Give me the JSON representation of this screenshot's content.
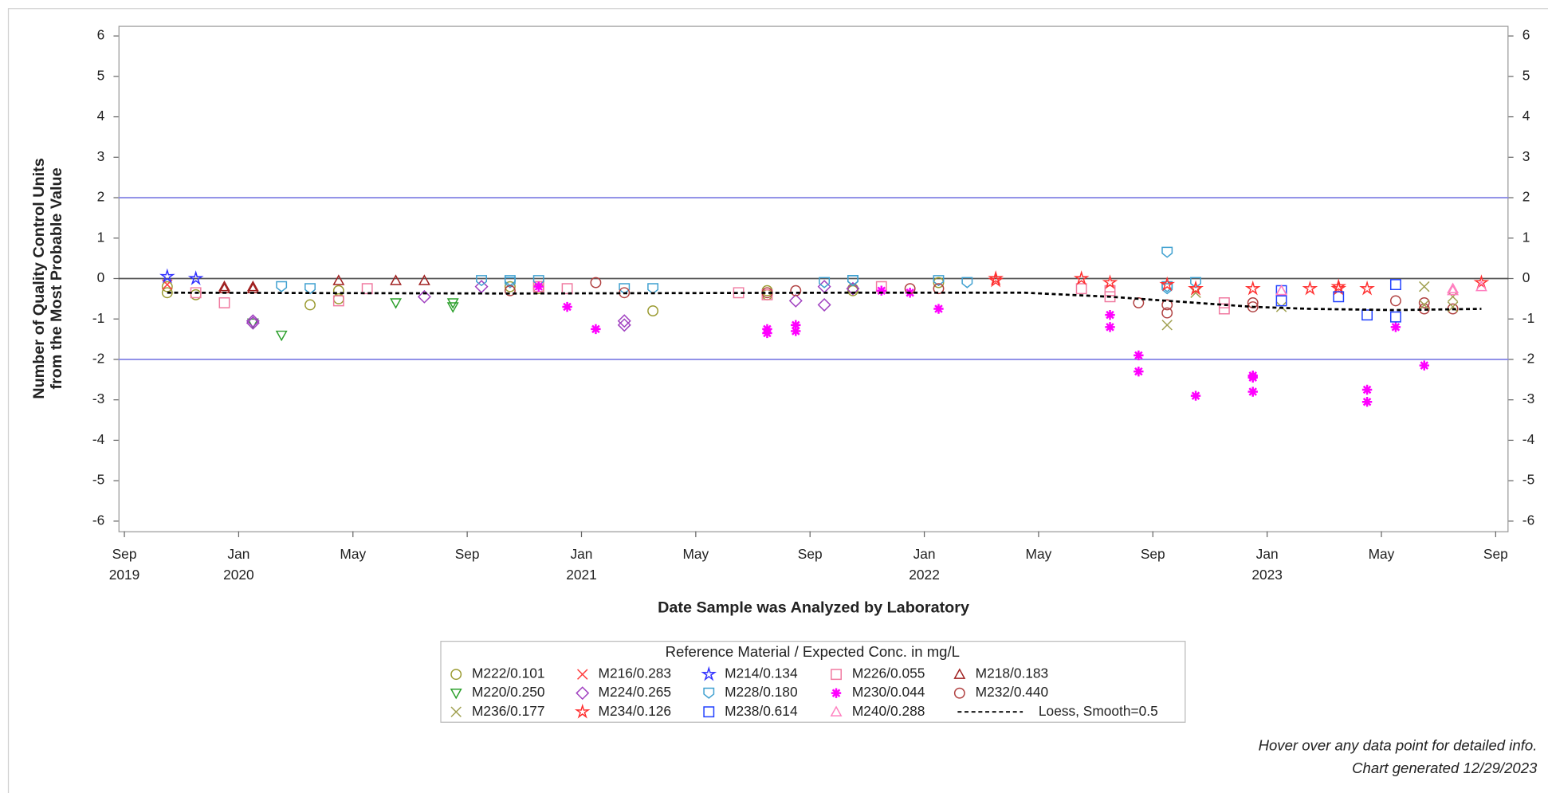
{
  "chart_data": {
    "type": "scatter",
    "y_label": [
      "Number of Quality Control Units",
      "from the Most Probable Value"
    ],
    "x_label": "Date Sample was Analyzed by Laboratory",
    "legend_title": "Reference Material / Expected Conc. in mg/L",
    "notes": [
      "Hover over any data point for detailed info.",
      "Chart generated 12/29/2023"
    ],
    "xlim": [
      "2019-09",
      "2023-09"
    ],
    "xticks": [
      {
        "value": "2019-09",
        "label": [
          "Sep",
          "2019"
        ]
      },
      {
        "value": "2020-01",
        "label": [
          "Jan",
          "2020"
        ]
      },
      {
        "value": "2020-05",
        "label": [
          "May"
        ]
      },
      {
        "value": "2020-09",
        "label": [
          "Sep"
        ]
      },
      {
        "value": "2021-01",
        "label": [
          "Jan",
          "2021"
        ]
      },
      {
        "value": "2021-05",
        "label": [
          "May"
        ]
      },
      {
        "value": "2021-09",
        "label": [
          "Sep"
        ]
      },
      {
        "value": "2022-01",
        "label": [
          "Jan",
          "2022"
        ]
      },
      {
        "value": "2022-05",
        "label": [
          "May"
        ]
      },
      {
        "value": "2022-09",
        "label": [
          "Sep"
        ]
      },
      {
        "value": "2023-01",
        "label": [
          "Jan",
          "2023"
        ]
      },
      {
        "value": "2023-05",
        "label": [
          "May"
        ]
      },
      {
        "value": "2023-09",
        "label": [
          "Sep"
        ]
      }
    ],
    "ylim": [
      -6.25,
      6.25
    ],
    "yticks": [
      -6,
      -5,
      -4,
      -3,
      -2,
      -1,
      0,
      1,
      2,
      3,
      4,
      5,
      6
    ],
    "right_axis": true,
    "reference_lines": [
      {
        "value": 2,
        "color": "#8a8ae6"
      },
      {
        "value": -2,
        "color": "#8a8ae6"
      },
      {
        "value": 0,
        "color": "#555555"
      }
    ],
    "series": [
      {
        "name": "M222/0.101",
        "marker": "circle",
        "color": "#9a9a30",
        "x": [
          "2019-10",
          "2019-10",
          "2019-11",
          "2020-03",
          "2020-04",
          "2020-04",
          "2020-10",
          "2020-11",
          "2021-03",
          "2021-07",
          "2021-07",
          "2021-10",
          "2021-10",
          "2022-01"
        ],
        "values": [
          -0.2,
          -0.35,
          -0.4,
          -0.65,
          -0.3,
          -0.5,
          -0.2,
          -0.25,
          -0.8,
          -0.4,
          -0.3,
          -0.3,
          -0.25,
          -0.1
        ]
      },
      {
        "name": "M216/0.283",
        "marker": "x",
        "color": "#ff4040",
        "x": [
          "2019-10"
        ],
        "values": [
          -0.15
        ]
      },
      {
        "name": "M214/0.134",
        "marker": "star",
        "color": "#3030ff",
        "x": [
          "2019-10",
          "2019-11"
        ],
        "values": [
          0.05,
          0
        ]
      },
      {
        "name": "M226/0.055",
        "marker": "square",
        "color": "#f07aa0",
        "x": [
          "2019-11",
          "2019-12",
          "2020-04",
          "2020-05",
          "2020-11",
          "2020-11",
          "2020-12",
          "2021-06",
          "2021-07",
          "2021-11",
          "2022-06",
          "2022-07",
          "2022-07",
          "2022-11",
          "2022-11"
        ],
        "values": [
          -0.35,
          -0.6,
          -0.55,
          -0.25,
          -0.2,
          -0.2,
          -0.25,
          -0.35,
          -0.4,
          -0.2,
          -0.25,
          -0.3,
          -0.45,
          -0.6,
          -0.75
        ]
      },
      {
        "name": "M218/0.183",
        "marker": "triangle",
        "color": "#a02020",
        "x": [
          "2019-12",
          "2019-12",
          "2020-01",
          "2020-01",
          "2020-04",
          "2020-06",
          "2020-07"
        ],
        "values": [
          -0.2,
          -0.25,
          -0.2,
          -0.25,
          -0.05,
          -0.05,
          -0.05
        ]
      },
      {
        "name": "M220/0.250",
        "marker": "triangle-down",
        "color": "#2ca02c",
        "x": [
          "2020-01",
          "2020-02",
          "2020-06",
          "2020-08",
          "2020-08"
        ],
        "values": [
          -1.1,
          -1.4,
          -0.6,
          -0.7,
          -0.6
        ]
      },
      {
        "name": "M224/0.265",
        "marker": "diamond",
        "color": "#a040c0",
        "x": [
          "2020-01",
          "2020-01",
          "2020-07",
          "2020-09",
          "2021-02",
          "2021-02",
          "2021-08",
          "2021-09",
          "2021-09",
          "2021-10"
        ],
        "values": [
          -1.1,
          -1.05,
          -0.45,
          -0.2,
          -1.05,
          -1.15,
          -0.55,
          -0.65,
          -0.2,
          -0.25
        ]
      },
      {
        "name": "M228/0.180",
        "marker": "shield",
        "color": "#3fa0d0",
        "x": [
          "2020-02",
          "2020-03",
          "2020-09",
          "2020-10",
          "2020-10",
          "2020-11",
          "2021-02",
          "2021-03",
          "2021-09",
          "2021-10",
          "2021-10",
          "2021-10",
          "2022-01",
          "2022-02",
          "2022-09",
          "2022-09",
          "2022-09",
          "2022-10"
        ],
        "values": [
          -0.2,
          -0.25,
          -0.05,
          -0.1,
          -0.05,
          -0.05,
          -0.25,
          -0.25,
          -0.1,
          -0.05,
          -0.05,
          -0.05,
          -0.05,
          -0.1,
          -0.2,
          -0.25,
          0.65,
          -0.1
        ]
      },
      {
        "name": "M230/0.044",
        "marker": "asterisk",
        "color": "#ff00ff",
        "x": [
          "2020-11",
          "2020-12",
          "2021-01",
          "2021-07",
          "2021-07",
          "2021-08",
          "2021-08",
          "2021-11",
          "2021-12",
          "2022-01",
          "2022-07",
          "2022-07",
          "2022-08",
          "2022-08",
          "2022-10",
          "2022-12",
          "2022-12",
          "2022-12",
          "2023-04",
          "2023-04",
          "2023-05",
          "2023-06"
        ],
        "values": [
          -0.2,
          -0.7,
          -1.25,
          -1.25,
          -1.35,
          -1.3,
          -1.15,
          -0.3,
          -0.35,
          -0.75,
          -0.9,
          -1.2,
          -1.9,
          -2.3,
          -2.9,
          -2.45,
          -2.8,
          -2.4,
          -3.05,
          -2.75,
          -1.2,
          -2.15
        ]
      },
      {
        "name": "M232/0.440",
        "marker": "circle",
        "color": "#b04040",
        "x": [
          "2020-10",
          "2021-01",
          "2021-02",
          "2021-07",
          "2021-08",
          "2021-12",
          "2022-01",
          "2022-08",
          "2022-09",
          "2022-09",
          "2022-12",
          "2022-12",
          "2023-05",
          "2023-06",
          "2023-06",
          "2023-07"
        ],
        "values": [
          -0.3,
          -0.1,
          -0.35,
          -0.35,
          -0.3,
          -0.25,
          -0.25,
          -0.6,
          -0.65,
          -0.85,
          -0.6,
          -0.7,
          -0.55,
          -0.6,
          -0.75,
          -0.75
        ]
      },
      {
        "name": "M236/0.177",
        "marker": "x",
        "color": "#a0a050",
        "x": [
          "2022-09",
          "2022-10",
          "2023-01",
          "2023-06",
          "2023-06",
          "2023-07",
          "2023-07"
        ],
        "values": [
          -1.15,
          -0.35,
          -0.7,
          -0.2,
          -0.65,
          -0.7,
          -0.45
        ]
      },
      {
        "name": "M234/0.126",
        "marker": "star",
        "color": "#ff3030",
        "x": [
          "2022-03",
          "2022-03",
          "2022-06",
          "2022-07",
          "2022-09",
          "2022-10",
          "2022-10",
          "2022-12",
          "2023-02",
          "2023-03",
          "2023-03",
          "2023-04",
          "2023-08"
        ],
        "values": [
          -0.05,
          0,
          0,
          -0.1,
          -0.15,
          -0.25,
          -0.25,
          -0.25,
          -0.25,
          -0.25,
          -0.2,
          -0.25,
          -0.1
        ]
      },
      {
        "name": "M238/0.614",
        "marker": "square",
        "color": "#2040ff",
        "x": [
          "2023-01",
          "2023-01",
          "2023-03",
          "2023-04",
          "2023-05",
          "2023-05"
        ],
        "values": [
          -0.3,
          -0.55,
          -0.45,
          -0.9,
          -0.95,
          -0.15
        ]
      },
      {
        "name": "M240/0.288",
        "marker": "triangle",
        "color": "#ff80c0",
        "x": [
          "2023-01",
          "2023-01",
          "2023-07",
          "2023-07",
          "2023-08"
        ],
        "values": [
          -0.3,
          -0.3,
          -0.25,
          -0.3,
          -0.2
        ]
      },
      {
        "name": "Loess, Smooth=0.5",
        "marker": "line",
        "dashed": true,
        "color": "#000000",
        "x": [
          "2019-10",
          "2020-10",
          "2021-10",
          "2022-04",
          "2022-07",
          "2022-10",
          "2022-12",
          "2023-02",
          "2023-05",
          "2023-08"
        ],
        "values": [
          -0.35,
          -0.37,
          -0.35,
          -0.35,
          -0.45,
          -0.6,
          -0.7,
          -0.75,
          -0.78,
          -0.75
        ]
      }
    ]
  }
}
